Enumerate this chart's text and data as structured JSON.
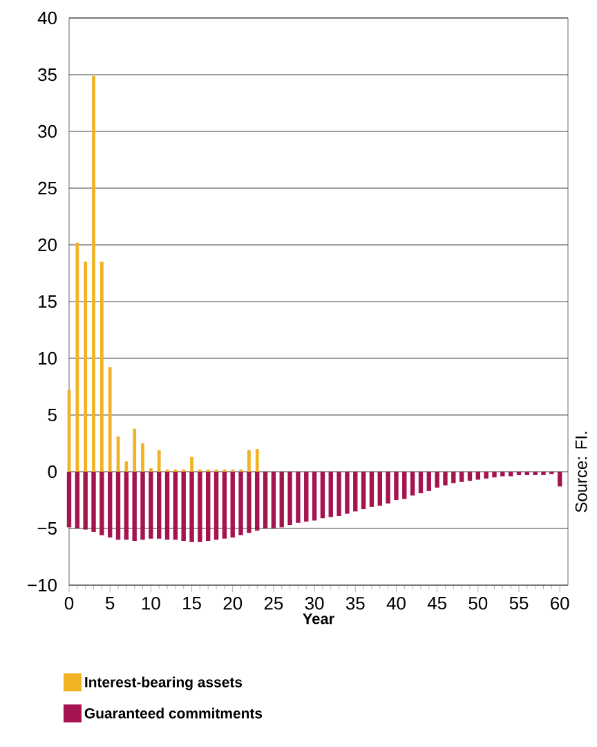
{
  "chart_data": {
    "type": "bar",
    "xlabel": "Year",
    "x": [
      0,
      1,
      2,
      3,
      4,
      5,
      6,
      7,
      8,
      9,
      10,
      11,
      12,
      13,
      14,
      15,
      16,
      17,
      18,
      19,
      20,
      21,
      22,
      23,
      24,
      25,
      26,
      27,
      28,
      29,
      30,
      31,
      32,
      33,
      34,
      35,
      36,
      37,
      38,
      39,
      40,
      41,
      42,
      43,
      44,
      45,
      46,
      47,
      48,
      49,
      50,
      51,
      52,
      53,
      54,
      55,
      56,
      57,
      58,
      59,
      60
    ],
    "series": [
      {
        "name": "Interest-bearing assets",
        "color": "#f0b323",
        "values": [
          7.2,
          20.2,
          18.5,
          34.9,
          18.5,
          9.2,
          3.1,
          0.9,
          3.8,
          2.5,
          0.3,
          1.9,
          0.2,
          0.2,
          0.2,
          1.3,
          0.2,
          0.2,
          0.2,
          0.2,
          0.2,
          0.2,
          1.9,
          2.0,
          null,
          null,
          null,
          null,
          null,
          null,
          null,
          null,
          null,
          null,
          null,
          null,
          null,
          null,
          null,
          null,
          null,
          null,
          null,
          null,
          null,
          null,
          null,
          null,
          null,
          null,
          null,
          null,
          null,
          null,
          null,
          null,
          null,
          null,
          null,
          null,
          null
        ]
      },
      {
        "name": "Guaranteed commitments",
        "color": "#a51450",
        "values": [
          -4.9,
          -5.0,
          -5.1,
          -5.3,
          -5.6,
          -5.8,
          -6.0,
          -6.0,
          -6.1,
          -6.0,
          -5.9,
          -5.9,
          -6.0,
          -6.0,
          -6.1,
          -6.2,
          -6.2,
          -6.1,
          -6.0,
          -5.9,
          -5.8,
          -5.6,
          -5.4,
          -5.2,
          -5.0,
          -5.0,
          -4.9,
          -4.7,
          -4.5,
          -4.4,
          -4.3,
          -4.1,
          -4.0,
          -3.9,
          -3.7,
          -3.5,
          -3.3,
          -3.1,
          -3.0,
          -2.8,
          -2.5,
          -2.4,
          -2.1,
          -1.9,
          -1.7,
          -1.4,
          -1.2,
          -1.0,
          -0.9,
          -0.8,
          -0.7,
          -0.6,
          -0.5,
          -0.4,
          -0.4,
          -0.3,
          -0.3,
          -0.3,
          -0.3,
          -0.2,
          -1.3
        ]
      }
    ],
    "xlim": [
      0,
      61
    ],
    "xticks": [
      0,
      5,
      10,
      15,
      20,
      25,
      30,
      35,
      40,
      45,
      50,
      55,
      60
    ],
    "ylim": [
      -10,
      40
    ],
    "yticks": [
      {
        "value": -10,
        "label": "−10"
      },
      {
        "value": -5,
        "label": "−5"
      },
      0,
      5,
      10,
      15,
      20,
      25,
      30,
      35,
      40
    ],
    "grid": "y",
    "legend": "bottom",
    "annotations": [
      "Source: FI."
    ]
  }
}
